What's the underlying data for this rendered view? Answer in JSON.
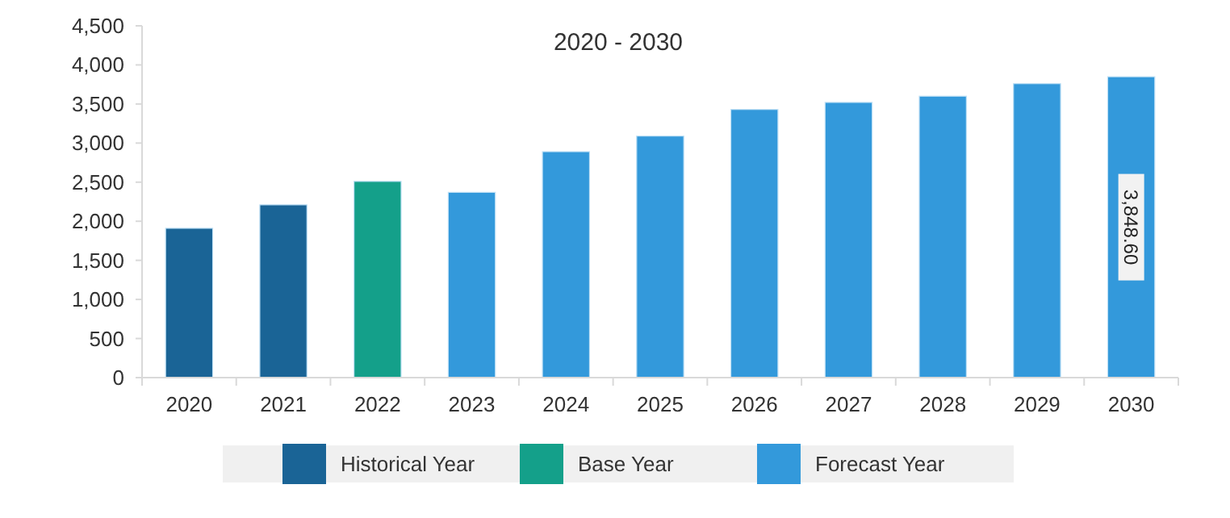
{
  "chart_data": {
    "type": "bar",
    "title": "2020 - 2030",
    "categories": [
      "2020",
      "2021",
      "2022",
      "2023",
      "2024",
      "2025",
      "2026",
      "2027",
      "2028",
      "2029",
      "2030"
    ],
    "series": [
      {
        "name": "Historical Year",
        "color": "#1a6496",
        "values": [
          1910,
          2210,
          null,
          null,
          null,
          null,
          null,
          null,
          null,
          null,
          null
        ]
      },
      {
        "name": "Base Year",
        "color": "#14a08a",
        "values": [
          null,
          null,
          2510,
          null,
          null,
          null,
          null,
          null,
          null,
          null,
          null
        ]
      },
      {
        "name": "Forecast Year",
        "color": "#3399db",
        "values": [
          null,
          null,
          null,
          2370,
          2890,
          3090,
          3430,
          3520,
          3600,
          3760,
          3848.6
        ],
        "value_labels": [
          null,
          null,
          null,
          null,
          null,
          null,
          null,
          null,
          null,
          null,
          "3,848.60"
        ]
      }
    ],
    "ylim": [
      0,
      4500
    ],
    "yticks": [
      {
        "value": 0,
        "label": "0"
      },
      {
        "value": 500,
        "label": "500"
      },
      {
        "value": 1000,
        "label": "1,000"
      },
      {
        "value": 1500,
        "label": "1,500"
      },
      {
        "value": 2000,
        "label": "2,000"
      },
      {
        "value": 2500,
        "label": "2,500"
      },
      {
        "value": 3000,
        "label": "3,000"
      },
      {
        "value": 3500,
        "label": "3,500"
      },
      {
        "value": 4000,
        "label": "4,000"
      },
      {
        "value": 4500,
        "label": "4,500"
      }
    ],
    "grid": false,
    "legend": "bottom"
  }
}
